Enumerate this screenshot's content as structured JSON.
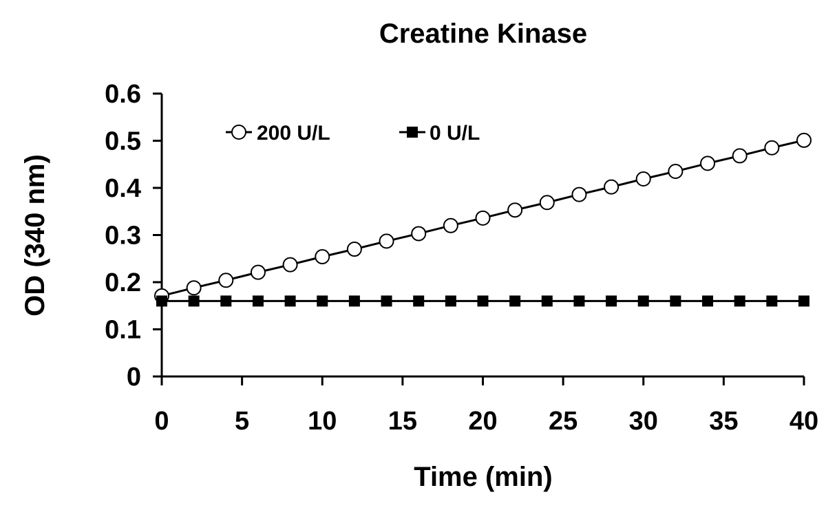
{
  "chart_data": {
    "type": "line",
    "title": "Creatine Kinase",
    "xlabel": "Time (min)",
    "ylabel": "OD (340 nm)",
    "xlim": [
      0,
      40
    ],
    "ylim": [
      0,
      0.6
    ],
    "xticks": [
      "0",
      "5",
      "10",
      "15",
      "20",
      "25",
      "30",
      "35",
      "40"
    ],
    "yticks": [
      "0",
      "0.1",
      "0.2",
      "0.3",
      "0.4",
      "0.5",
      "0.6"
    ],
    "grid": false,
    "legend_position": "top-left",
    "x": [
      0,
      2,
      4,
      6,
      8,
      10,
      12,
      14,
      16,
      18,
      20,
      22,
      24,
      26,
      28,
      30,
      32,
      34,
      36,
      38,
      40
    ],
    "series": [
      {
        "name": "200 U/L",
        "marker": "open-circle",
        "color": "#000000",
        "values": [
          0.171,
          0.188,
          0.204,
          0.221,
          0.237,
          0.254,
          0.27,
          0.287,
          0.303,
          0.32,
          0.336,
          0.353,
          0.369,
          0.386,
          0.402,
          0.419,
          0.435,
          0.452,
          0.468,
          0.485,
          0.501
        ]
      },
      {
        "name": "0 U/L",
        "marker": "filled-square",
        "color": "#000000",
        "values": [
          0.16,
          0.16,
          0.16,
          0.16,
          0.16,
          0.16,
          0.16,
          0.16,
          0.16,
          0.16,
          0.16,
          0.16,
          0.16,
          0.16,
          0.16,
          0.16,
          0.16,
          0.16,
          0.16,
          0.16,
          0.16
        ]
      }
    ]
  }
}
